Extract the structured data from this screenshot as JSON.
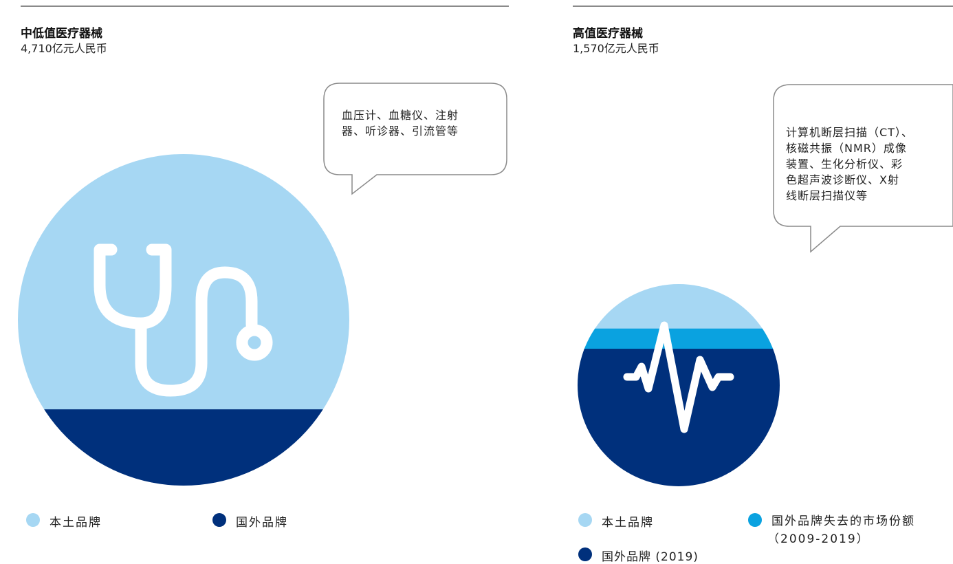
{
  "colors": {
    "domestic": "#a6d7f3",
    "lost_share": "#0aa2e0",
    "foreign": "#00307c",
    "rule": "#8a8a8a",
    "icon": "#ffffff"
  },
  "icons": {
    "left": "stethoscope-icon",
    "right": "heartbeat-icon"
  },
  "left": {
    "title": "中低值医疗器械",
    "subtitle": "4,710亿元人民币",
    "bubble": [
      "血压计、血糖仪、注射",
      "器、听诊器、引流管等"
    ],
    "legend": [
      {
        "label": "本土品牌",
        "color": "#a6d7f3"
      },
      {
        "label": "国外品牌",
        "color": "#00307c"
      }
    ]
  },
  "right": {
    "title": "高值医疗器械",
    "subtitle": "1,570亿元人民币",
    "bubble": [
      "计算机断层扫描（CT）、",
      "核磁共振（NMR）成像",
      "装置、生化分析仪、彩",
      "色超声波诊断仪、X射",
      "线断层扫描仪等"
    ],
    "legend": [
      {
        "label": "本土品牌",
        "color": "#a6d7f3"
      },
      {
        "label": "国外品牌失去的市场份额",
        "label2": "（2009-2019）",
        "color": "#0aa2e0"
      },
      {
        "label": "国外品牌 (2019)",
        "color": "#00307c"
      }
    ]
  },
  "chart_data": [
    {
      "type": "pie",
      "title": "中低值医疗器械",
      "subtitle": "4,710亿元人民币",
      "total": 4710,
      "series": [
        {
          "name": "本土品牌",
          "share": 0.77
        },
        {
          "name": "国外品牌",
          "share": 0.23
        }
      ]
    },
    {
      "type": "pie",
      "title": "高值医疗器械",
      "subtitle": "1,570亿元人民币",
      "total": 1570,
      "series": [
        {
          "name": "本土品牌",
          "share": 0.22
        },
        {
          "name": "国外品牌失去的市场份额 (2009-2019)",
          "share": 0.1
        },
        {
          "name": "国外品牌 (2019)",
          "share": 0.68
        }
      ]
    }
  ]
}
